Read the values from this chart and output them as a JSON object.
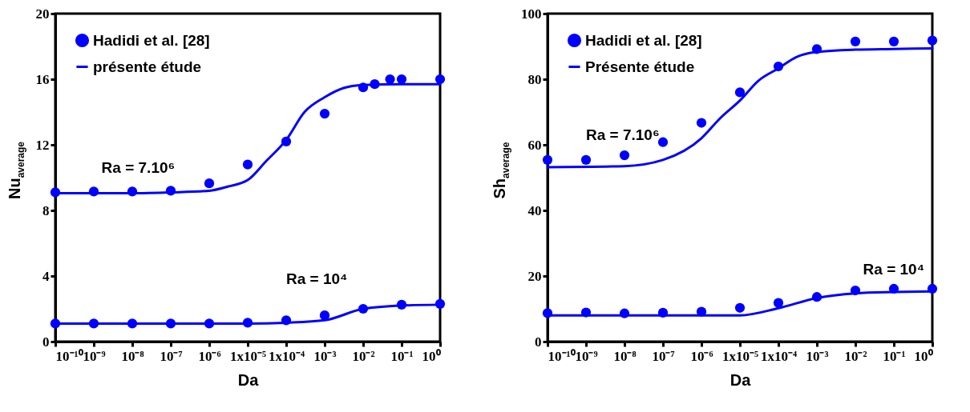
{
  "chart_data": [
    {
      "type": "scatter",
      "xlabel": "Da",
      "ylabel": "Nu$_{average}$",
      "log": "x",
      "xlim": [
        1e-10,
        1
      ],
      "ylim": [
        0,
        20
      ],
      "yticks": [
        0,
        4,
        8,
        12,
        16,
        20
      ],
      "xticks": [
        {
          "value": 1e-10,
          "label": "10⁻¹⁰"
        },
        {
          "value": 1e-09,
          "label": "10⁻⁹"
        },
        {
          "value": 1e-08,
          "label": "10⁻⁸"
        },
        {
          "value": 1e-07,
          "label": "10⁻⁷"
        },
        {
          "value": 1e-06,
          "label": "10⁻⁶"
        },
        {
          "value": 1e-05,
          "label": "1x10⁻⁵"
        },
        {
          "value": 0.0001,
          "label": "1x10⁻⁴"
        },
        {
          "value": 0.001,
          "label": "10⁻³"
        },
        {
          "value": 0.01,
          "label": "10⁻²"
        },
        {
          "value": 0.1,
          "label": "10⁻¹"
        },
        {
          "value": 1,
          "label": "10⁰"
        }
      ],
      "legend": "top left",
      "grid": false,
      "annotations": [
        "Ra = 7.10⁶",
        "Ra = 10⁴"
      ],
      "series": [
        {
          "name": "Hadidi et al. [28]",
          "marker": "circle",
          "color": "#0000ff",
          "x": [
            1e-10,
            1e-09,
            1e-08,
            1e-07,
            1e-06,
            1e-05,
            0.0001,
            0.001,
            0.01,
            0.02,
            0.05,
            0.1,
            1
          ],
          "values": [
            9.1,
            9.15,
            9.15,
            9.2,
            9.65,
            10.8,
            12.2,
            13.9,
            15.5,
            15.7,
            16.0,
            16.0,
            16.0
          ]
        },
        {
          "name": "présente étude",
          "type": "line",
          "marker": "none",
          "color": "#0000ff",
          "x": [
            1e-10,
            1e-08,
            1e-07,
            1e-06,
            3e-06,
            1e-05,
            3e-05,
            0.0001,
            0.0003,
            0.001,
            0.003,
            0.01,
            0.1,
            1
          ],
          "values": [
            9.05,
            9.05,
            9.1,
            9.2,
            9.45,
            9.85,
            11.0,
            12.3,
            14.0,
            14.9,
            15.45,
            15.65,
            15.7,
            15.7
          ]
        },
        {
          "marker": "circle",
          "color": "#0000ff",
          "x": [
            1e-10,
            1e-09,
            1e-08,
            1e-07,
            1e-06,
            1e-05,
            0.0001,
            0.001,
            0.01,
            0.1,
            1
          ],
          "values": [
            1.1,
            1.1,
            1.1,
            1.1,
            1.1,
            1.15,
            1.3,
            1.6,
            2.0,
            2.25,
            2.3
          ]
        },
        {
          "type": "line",
          "marker": "none",
          "color": "#0000ff",
          "x": [
            1e-10,
            1e-06,
            1e-05,
            0.0001,
            0.001,
            0.01,
            0.1,
            1
          ],
          "values": [
            1.1,
            1.1,
            1.1,
            1.15,
            1.3,
            2.0,
            2.2,
            2.25
          ]
        }
      ]
    },
    {
      "type": "scatter",
      "xlabel": "Da",
      "ylabel": "Sh$_{average}$",
      "log": "x",
      "xlim": [
        1e-10,
        1
      ],
      "ylim": [
        0,
        100
      ],
      "yticks": [
        0,
        20,
        40,
        60,
        80,
        100
      ],
      "xticks": [
        {
          "value": 1e-10,
          "label": "10⁻¹⁰"
        },
        {
          "value": 1e-09,
          "label": "10⁻⁹"
        },
        {
          "value": 1e-08,
          "label": "10⁻⁸"
        },
        {
          "value": 1e-07,
          "label": "10⁻⁷"
        },
        {
          "value": 1e-06,
          "label": "10⁻⁶"
        },
        {
          "value": 1e-05,
          "label": "1x10⁻⁵"
        },
        {
          "value": 0.0001,
          "label": "1x10⁻⁴"
        },
        {
          "value": 0.001,
          "label": "10⁻³"
        },
        {
          "value": 0.01,
          "label": "10⁻²"
        },
        {
          "value": 0.1,
          "label": "10⁻¹"
        },
        {
          "value": 1,
          "label": "10⁰"
        }
      ],
      "legend": "top left",
      "grid": false,
      "annotations": [
        "Ra = 7.10⁶",
        "Ra = 10⁴"
      ],
      "series": [
        {
          "name": "Hadidi et al. [28]",
          "marker": "circle",
          "color": "#0000ff",
          "x": [
            1e-10,
            1e-09,
            1e-08,
            1e-07,
            1e-06,
            1e-05,
            0.0001,
            0.001,
            0.01,
            0.1,
            1
          ],
          "values": [
            55.4,
            55.4,
            56.8,
            60.8,
            66.7,
            76.0,
            83.9,
            89.2,
            91.5,
            91.5,
            91.8
          ]
        },
        {
          "name": "Présente étude",
          "type": "line",
          "marker": "none",
          "color": "#0000ff",
          "x": [
            1e-10,
            1e-08,
            1e-07,
            1e-06,
            3e-06,
            1e-05,
            3e-05,
            0.0001,
            0.0003,
            0.001,
            0.01,
            0.1,
            1
          ],
          "values": [
            53.2,
            53.5,
            55.4,
            62.0,
            68.0,
            73.5,
            79.5,
            83.3,
            86.8,
            88.3,
            89.0,
            89.2,
            89.4
          ]
        },
        {
          "marker": "circle",
          "color": "#0000ff",
          "x": [
            1e-10,
            1e-09,
            1e-08,
            1e-07,
            1e-06,
            1e-05,
            0.0001,
            0.001,
            0.01,
            0.1,
            1
          ],
          "values": [
            8.7,
            8.9,
            8.6,
            8.8,
            9.1,
            10.3,
            11.8,
            13.6,
            15.6,
            16.1,
            16.1
          ]
        },
        {
          "type": "line",
          "marker": "none",
          "color": "#0000ff",
          "x": [
            1e-10,
            1e-06,
            1e-05,
            0.0001,
            0.001,
            0.01,
            0.1,
            1
          ],
          "values": [
            8.0,
            8.0,
            8.0,
            10.2,
            13.3,
            14.7,
            15.1,
            15.3
          ]
        }
      ]
    }
  ]
}
